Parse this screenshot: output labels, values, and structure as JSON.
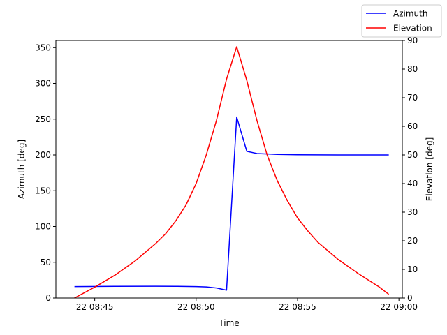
{
  "chart_data": {
    "type": "line",
    "xlabel": "Time",
    "ylabel_left": "Azimuth [deg]",
    "ylabel_right": "Elevation [deg]",
    "xlim": [
      "22 08:43:05",
      "22 09:00:10"
    ],
    "ylim_left": [
      0,
      360
    ],
    "ylim_right": [
      0,
      90
    ],
    "x_ticks": [
      {
        "t": "22 08:45:00",
        "label": "22 08:45"
      },
      {
        "t": "22 08:50:00",
        "label": "22 08:50"
      },
      {
        "t": "22 08:55:00",
        "label": "22 08:55"
      },
      {
        "t": "22 09:00:00",
        "label": "22 09:00"
      }
    ],
    "y_ticks_left": [
      0,
      50,
      100,
      150,
      200,
      250,
      300,
      350
    ],
    "y_ticks_right": [
      0,
      10,
      20,
      30,
      40,
      50,
      60,
      70,
      80,
      90
    ],
    "grid": false,
    "legend_position": "top-right",
    "series": [
      {
        "name": "Azimuth",
        "axis": "left",
        "color": "#0000ff",
        "points": [
          {
            "t": "22 08:44:00",
            "y": 16.0
          },
          {
            "t": "22 08:46:00",
            "y": 16.3
          },
          {
            "t": "22 08:48:00",
            "y": 16.5
          },
          {
            "t": "22 08:49:00",
            "y": 16.4
          },
          {
            "t": "22 08:50:00",
            "y": 16.0
          },
          {
            "t": "22 08:50:30",
            "y": 15.5
          },
          {
            "t": "22 08:51:00",
            "y": 14.0
          },
          {
            "t": "22 08:51:30",
            "y": 11.0
          },
          {
            "t": "22 08:52:00",
            "y": 253.0
          },
          {
            "t": "22 08:52:30",
            "y": 205.0
          },
          {
            "t": "22 08:53:00",
            "y": 202.0
          },
          {
            "t": "22 08:54:00",
            "y": 200.7
          },
          {
            "t": "22 08:55:00",
            "y": 200.2
          },
          {
            "t": "22 08:57:00",
            "y": 200.0
          },
          {
            "t": "22 08:59:30",
            "y": 200.0
          }
        ]
      },
      {
        "name": "Elevation",
        "axis": "right",
        "color": "#ff0000",
        "points": [
          {
            "t": "22 08:44:00",
            "y": 0.0
          },
          {
            "t": "22 08:45:00",
            "y": 3.8
          },
          {
            "t": "22 08:46:00",
            "y": 8.0
          },
          {
            "t": "22 08:47:00",
            "y": 13.0
          },
          {
            "t": "22 08:48:00",
            "y": 19.0
          },
          {
            "t": "22 08:48:30",
            "y": 22.5
          },
          {
            "t": "22 08:49:00",
            "y": 27.0
          },
          {
            "t": "22 08:49:30",
            "y": 32.5
          },
          {
            "t": "22 08:50:00",
            "y": 40.0
          },
          {
            "t": "22 08:50:30",
            "y": 50.0
          },
          {
            "t": "22 08:51:00",
            "y": 62.0
          },
          {
            "t": "22 08:51:30",
            "y": 76.5
          },
          {
            "t": "22 08:52:00",
            "y": 87.8
          },
          {
            "t": "22 08:52:30",
            "y": 76.0
          },
          {
            "t": "22 08:53:00",
            "y": 62.0
          },
          {
            "t": "22 08:53:30",
            "y": 50.0
          },
          {
            "t": "22 08:54:00",
            "y": 41.0
          },
          {
            "t": "22 08:54:30",
            "y": 34.0
          },
          {
            "t": "22 08:55:00",
            "y": 28.0
          },
          {
            "t": "22 08:55:30",
            "y": 23.5
          },
          {
            "t": "22 08:56:00",
            "y": 19.5
          },
          {
            "t": "22 08:57:00",
            "y": 13.5
          },
          {
            "t": "22 08:58:00",
            "y": 8.5
          },
          {
            "t": "22 08:59:00",
            "y": 4.0
          },
          {
            "t": "22 08:59:30",
            "y": 1.3
          }
        ]
      }
    ]
  }
}
